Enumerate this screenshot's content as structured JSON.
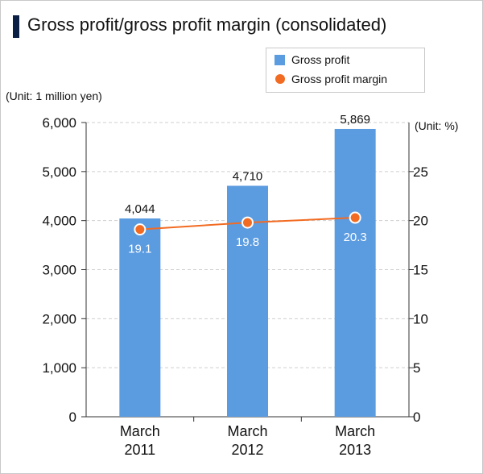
{
  "title": "Gross profit/gross profit margin (consolidated)",
  "legend": {
    "bar_label": "Gross profit",
    "line_label": "Gross profit margin"
  },
  "units": {
    "left": "(Unit: 1 million yen)",
    "right": "(Unit: %)"
  },
  "colors": {
    "bar": "#5b9be0",
    "line": "#f26b22",
    "title_accent": "#0b1f44"
  },
  "chart_data": {
    "type": "bar",
    "categories": [
      {
        "line1": "March",
        "line2": "2011"
      },
      {
        "line1": "March",
        "line2": "2012"
      },
      {
        "line1": "March",
        "line2": "2013"
      }
    ],
    "series": [
      {
        "name": "Gross profit",
        "type": "bar",
        "axis": "left",
        "values": [
          4044,
          4710,
          5869
        ],
        "labels": [
          "4,044",
          "4,710",
          "5,869"
        ]
      },
      {
        "name": "Gross profit margin",
        "type": "line",
        "axis": "right",
        "values": [
          19.1,
          19.8,
          20.3
        ],
        "labels": [
          "19.1",
          "19.8",
          "20.3"
        ]
      }
    ],
    "y_left": {
      "min": 0,
      "max": 6000,
      "ticks": [
        0,
        1000,
        2000,
        3000,
        4000,
        5000,
        6000
      ],
      "tick_labels": [
        "0",
        "1,000",
        "2,000",
        "3,000",
        "4,000",
        "5,000",
        "6,000"
      ]
    },
    "y_right": {
      "min": 0,
      "max": 30,
      "ticks": [
        0,
        5,
        10,
        15,
        20,
        25
      ],
      "tick_labels": [
        "0",
        "5",
        "10",
        "15",
        "20",
        "25"
      ]
    },
    "grid": true,
    "legend_position": "top-right"
  }
}
